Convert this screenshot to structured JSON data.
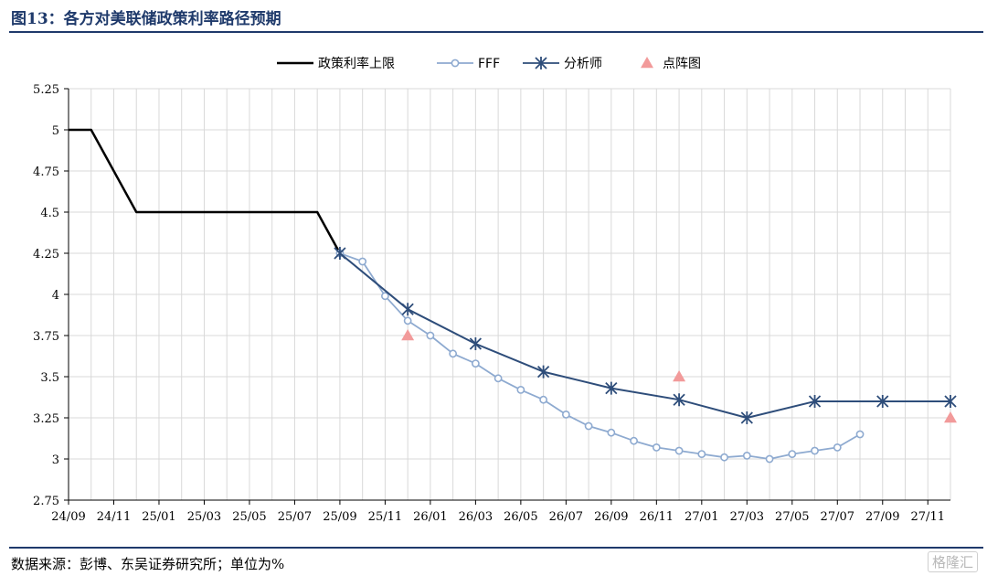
{
  "header": {
    "title": "图13：各方对美联储政策利率路径预期"
  },
  "footer": {
    "source": "数据来源：彭博、东吴证券研究所；单位为%",
    "watermark": "格隆汇"
  },
  "colors": {
    "policy": "#000000",
    "fff": "#8eaad0",
    "analyst": "#2e4d7a",
    "dotplot": "#f29a9a",
    "grid": "#d9d9d9",
    "rule": "#1f3a6b"
  },
  "chart_data": {
    "type": "line",
    "x_tick_labels": [
      "24/09",
      "24/11",
      "25/01",
      "25/03",
      "25/05",
      "25/07",
      "25/09",
      "25/11",
      "26/01",
      "26/03",
      "26/05",
      "26/07",
      "26/09",
      "26/11",
      "27/01",
      "27/03",
      "27/05",
      "27/07",
      "27/09",
      "27/11"
    ],
    "y_tick_labels": [
      "5.25",
      "5",
      "4.75",
      "4.5",
      "4.25",
      "4",
      "3.75",
      "3.5",
      "3.25",
      "3",
      "2.75"
    ],
    "ylim": [
      2.75,
      5.25
    ],
    "grid": true,
    "legend_position": "top-center",
    "series": [
      {
        "name": "政策利率上限",
        "style": "line",
        "points": [
          [
            "2024-09",
            5.0
          ],
          [
            "2024-10",
            5.0
          ],
          [
            "2024-12",
            4.5
          ],
          [
            "2025-01",
            4.5
          ],
          [
            "2025-03",
            4.5
          ],
          [
            "2025-05",
            4.5
          ],
          [
            "2025-07",
            4.5
          ],
          [
            "2025-08",
            4.5
          ],
          [
            "2025-09",
            4.25
          ]
        ]
      },
      {
        "name": "FFF",
        "style": "line-circle",
        "points": [
          [
            "2025-09",
            4.25
          ],
          [
            "2025-10",
            4.2
          ],
          [
            "2025-11",
            3.99
          ],
          [
            "2025-12",
            3.84
          ],
          [
            "2026-01",
            3.75
          ],
          [
            "2026-02",
            3.64
          ],
          [
            "2026-03",
            3.58
          ],
          [
            "2026-04",
            3.49
          ],
          [
            "2026-05",
            3.42
          ],
          [
            "2026-06",
            3.36
          ],
          [
            "2026-07",
            3.27
          ],
          [
            "2026-08",
            3.2
          ],
          [
            "2026-09",
            3.16
          ],
          [
            "2026-10",
            3.11
          ],
          [
            "2026-11",
            3.07
          ],
          [
            "2026-12",
            3.05
          ],
          [
            "2027-01",
            3.03
          ],
          [
            "2027-02",
            3.01
          ],
          [
            "2027-03",
            3.02
          ],
          [
            "2027-04",
            3.0
          ],
          [
            "2027-05",
            3.03
          ],
          [
            "2027-06",
            3.05
          ],
          [
            "2027-07",
            3.07
          ],
          [
            "2027-08",
            3.15
          ]
        ]
      },
      {
        "name": "分析师",
        "style": "line-star",
        "points": [
          [
            "2025-09",
            4.25
          ],
          [
            "2025-12",
            3.91
          ],
          [
            "2026-03",
            3.7
          ],
          [
            "2026-06",
            3.53
          ],
          [
            "2026-09",
            3.43
          ],
          [
            "2026-12",
            3.36
          ],
          [
            "2027-03",
            3.25
          ],
          [
            "2027-06",
            3.35
          ],
          [
            "2027-09",
            3.35
          ],
          [
            "2027-12",
            3.35
          ]
        ]
      },
      {
        "name": "点阵图",
        "style": "triangle",
        "points": [
          [
            "2025-12",
            3.75
          ],
          [
            "2026-12",
            3.5
          ],
          [
            "2027-12",
            3.25
          ]
        ]
      }
    ]
  }
}
